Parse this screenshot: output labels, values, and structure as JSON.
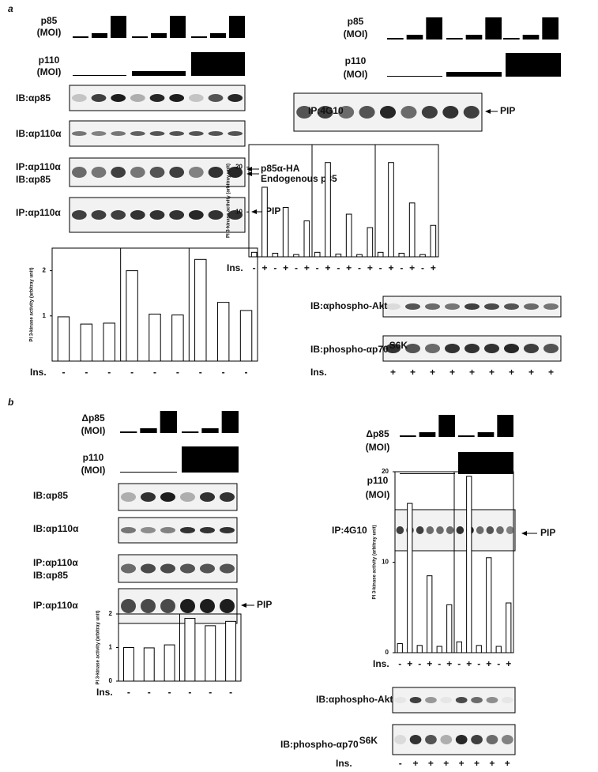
{
  "figure_a": {
    "label": "a",
    "left": {
      "p85_label": "p85",
      "p85_unit": "(MOI)",
      "p110_label": "p110",
      "p110_unit": "(MOI)",
      "blots": [
        "IB:αp85",
        "IB:αp110α",
        "IP:αp110α",
        "IB:αp85",
        "IP:αp110α"
      ],
      "annotations": [
        "p85α-HA",
        "Endogenous p85",
        "PIP"
      ]
    },
    "right": {
      "p85_label": "p85",
      "p85_unit": "(MOI)",
      "p110_label": "p110",
      "p110_unit": "(MOI)",
      "blots": [
        "IP:4G10",
        "IB:αphospho-Akt",
        "IB:phospho-αp70"
      ],
      "superscript": "S6K",
      "annotations": [
        "PIP"
      ],
      "ins_label": "Ins.",
      "ins_signs": [
        "+",
        "+",
        "+",
        "+",
        "+",
        "+",
        "+",
        "+",
        "+"
      ]
    }
  },
  "figure_b": {
    "label": "b",
    "left": {
      "p85_label": "Δp85",
      "p85_unit": "(MOI)",
      "p110_label": "p110",
      "p110_unit": "(MOI)",
      "blots": [
        "IB:αp85",
        "IB:αp110α",
        "IP:αp110α",
        "IB:αp85",
        "IP:αp110α"
      ],
      "annotations": [
        "PIP"
      ]
    },
    "right": {
      "p85_label": "Δp85",
      "p85_unit": "(MOI)",
      "p110_label": "p110",
      "p110_unit": "(MOI)",
      "blots": [
        "IP:4G10",
        "IB:αphospho-Akt",
        "IB:phospho-αp70"
      ],
      "superscript": "S6K",
      "annotations": [
        "PIP"
      ],
      "ins_label": "Ins.",
      "ins_signs": [
        "-",
        "+",
        "+",
        "+",
        "+",
        "+",
        "+",
        "+"
      ]
    }
  },
  "chart_data": [
    {
      "type": "bar",
      "ylabel": "PI 3-kinase activity (arbitray unit)",
      "xlabel": "Ins.",
      "categories": [
        "-",
        "-",
        "-",
        "-",
        "-",
        "-",
        "-",
        "-",
        "-"
      ],
      "values": [
        0.98,
        0.82,
        0.84,
        2.0,
        1.04,
        1.02,
        2.25,
        1.3,
        1.12
      ],
      "ylim": [
        0,
        2.5
      ],
      "yticks": [
        1,
        2
      ],
      "color": "#ffffff"
    },
    {
      "type": "bar",
      "ylabel": "PI 3-kinase activity (arbitray unit)",
      "xlabel": "Ins.",
      "categories": [
        "-",
        "+",
        "-",
        "+",
        "-",
        "+",
        "-",
        "+",
        "-",
        "+",
        "-",
        "+",
        "-",
        "+",
        "-",
        "+",
        "-",
        "+"
      ],
      "values": [
        1,
        15.5,
        0.8,
        11,
        0.5,
        8,
        1,
        21,
        0.6,
        9.5,
        0.5,
        6.5,
        1,
        21,
        0.8,
        12,
        0.5,
        7
      ],
      "ylim": [
        0,
        25
      ],
      "yticks": [
        10,
        20
      ],
      "color": "#ffffff"
    },
    {
      "type": "bar",
      "ylabel": "PI 3-kinase activity (arbitray unit)",
      "xlabel": "Ins.",
      "categories": [
        "-",
        "-",
        "-",
        "-",
        "-",
        "-"
      ],
      "values": [
        1.0,
        0.99,
        1.08,
        1.87,
        1.65,
        1.78
      ],
      "ylim": [
        0,
        2
      ],
      "yticks": [
        0,
        1,
        2
      ],
      "color": "#ffffff"
    },
    {
      "type": "bar",
      "ylabel": "PI 3-kinase activity (arbitray unit)",
      "xlabel": "Ins.",
      "categories": [
        "-",
        "+",
        "-",
        "+",
        "-",
        "+",
        "-",
        "+",
        "-",
        "+",
        "-",
        "+"
      ],
      "values": [
        1,
        16.5,
        0.8,
        8.5,
        0.7,
        5.3,
        1.2,
        19.5,
        0.8,
        10.5,
        0.7,
        5.5
      ],
      "ylim": [
        0,
        20
      ],
      "yticks": [
        0,
        10,
        20
      ],
      "color": "#ffffff"
    }
  ]
}
